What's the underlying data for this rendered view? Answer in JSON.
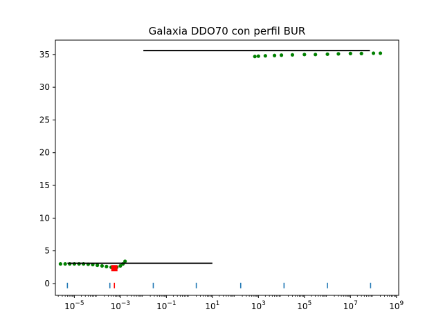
{
  "chart_data": {
    "type": "scatter",
    "title": "Galaxia DDO70 con perfil BUR",
    "xlabel": "",
    "ylabel": "",
    "xscale": "log",
    "xlim": [
      1.5e-06,
      1250000000.0
    ],
    "ylim": [
      -1.8,
      37.2
    ],
    "grid": false,
    "x_ticks": [
      {
        "value": 1e-05,
        "base": "10",
        "exp": "−5"
      },
      {
        "value": 0.001,
        "base": "10",
        "exp": "−3"
      },
      {
        "value": 0.1,
        "base": "10",
        "exp": "−1"
      },
      {
        "value": 10.0,
        "base": "10",
        "exp": "1"
      },
      {
        "value": 1000.0,
        "base": "10",
        "exp": "3"
      },
      {
        "value": 100000.0,
        "base": "10",
        "exp": "5"
      },
      {
        "value": 10000000.0,
        "base": "10",
        "exp": "7"
      },
      {
        "value": 1000000000.0,
        "base": "10",
        "exp": "9"
      }
    ],
    "y_ticks": [
      0,
      5,
      10,
      15,
      20,
      25,
      30,
      35
    ],
    "colors": {
      "data_points": "#008000",
      "model_lines": "#000000",
      "best_point": "#ff0000",
      "marker_ticks": "#1f77b4",
      "best_tick": "#ff0000"
    },
    "series": [
      {
        "kind": "points",
        "color_key": "data_points",
        "points": [
          [
            2.5e-06,
            3.0
          ],
          [
            4e-06,
            3.0
          ],
          [
            6.3e-06,
            3.0
          ],
          [
            1e-05,
            3.0
          ],
          [
            1.6e-05,
            3.0
          ],
          [
            2.5e-05,
            3.0
          ],
          [
            4e-05,
            2.95
          ],
          [
            6.3e-05,
            2.9
          ],
          [
            0.0001,
            2.8
          ],
          [
            0.00016,
            2.7
          ],
          [
            0.00025,
            2.6
          ],
          [
            0.0004,
            2.5
          ],
          [
            0.0005,
            2.45
          ],
          [
            0.0007,
            2.5
          ],
          [
            0.001,
            2.7
          ],
          [
            0.0013,
            3.0
          ],
          [
            0.0016,
            3.4
          ],
          [
            700,
            34.7
          ],
          [
            1000.0,
            34.75
          ],
          [
            2000.0,
            34.8
          ],
          [
            5000.0,
            34.85
          ],
          [
            10000.0,
            34.9
          ],
          [
            30000.0,
            34.95
          ],
          [
            100000.0,
            35.0
          ],
          [
            300000.0,
            35.0
          ],
          [
            1000000.0,
            35.05
          ],
          [
            3000000.0,
            35.1
          ],
          [
            10000000.0,
            35.15
          ],
          [
            30000000.0,
            35.15
          ],
          [
            100000000.0,
            35.2
          ],
          [
            200000000.0,
            35.2
          ]
        ]
      },
      {
        "kind": "segment",
        "color_key": "model_lines",
        "from": [
          5e-06,
          3.1
        ],
        "to": [
          10.0,
          3.1
        ]
      },
      {
        "kind": "segment",
        "color_key": "model_lines",
        "from": [
          0.01,
          35.6
        ],
        "to": [
          70000000.0,
          35.6
        ]
      },
      {
        "kind": "best_point",
        "color_key": "best_point",
        "x": 0.00055,
        "y": 2.35
      },
      {
        "kind": "vertical_markers",
        "color_key": "marker_ticks",
        "y": -0.3,
        "x": [
          5e-06,
          0.00035,
          0.027,
          2.0,
          170.0,
          13000.0,
          1000000.0,
          75000000.0
        ]
      },
      {
        "kind": "vertical_markers",
        "color_key": "best_tick",
        "y": -0.3,
        "x": [
          0.00055
        ]
      }
    ]
  }
}
